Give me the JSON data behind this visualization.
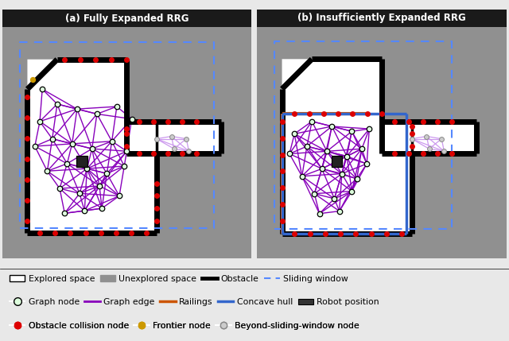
{
  "title_a": "(a) Fully Expanded RRG",
  "title_b": "(b) Insufficiently Expanded RRG",
  "bg_color": "#909090",
  "title_bg": "#1a1a1a",
  "title_fg": "#ffffff",
  "explored_color": "#ffffff",
  "wall_color": "#000000",
  "wall_lw": 5,
  "sliding_color": "#5588ff",
  "sliding_ls": "--",
  "edge_color_main": "#8800bb",
  "edge_color_beyond": "#cc99ee",
  "node_fc": "#ddffdd",
  "node_ec": "#000000",
  "robot_fc": "#222222",
  "obs_col_color": "#dd0000",
  "frontier_color": "#cc9900",
  "beyond_fc": "#cccccc",
  "beyond_ec": "#888888",
  "railing_color": "#cc5500",
  "concave_color": "#3366cc",
  "panel_a_nodes_x": [
    1.5,
    2.2,
    3.0,
    3.8,
    4.6,
    5.2,
    1.3,
    2.0,
    2.8,
    3.6,
    4.4,
    5.0,
    1.8,
    2.6,
    3.4,
    4.2,
    4.9,
    2.3,
    3.1,
    3.9,
    2.5,
    3.3,
    4.0,
    1.6,
    4.7
  ],
  "panel_a_nodes_y": [
    5.5,
    6.2,
    6.0,
    5.8,
    6.1,
    5.6,
    4.5,
    4.8,
    4.6,
    4.4,
    4.7,
    4.3,
    3.5,
    3.8,
    3.6,
    3.4,
    3.7,
    2.8,
    2.6,
    2.9,
    1.8,
    1.9,
    2.0,
    6.8,
    2.5
  ],
  "robot_a": [
    3.2,
    3.9
  ],
  "beyond_a_x": [
    6.2,
    6.8,
    7.4,
    6.9,
    7.5
  ],
  "beyond_a_y": [
    4.8,
    4.9,
    4.8,
    4.4,
    4.3
  ],
  "panel_b_nodes_x": [
    1.5,
    2.2,
    3.0,
    3.8,
    4.5,
    1.3,
    2.0,
    2.8,
    3.6,
    4.2,
    1.8,
    2.6,
    3.4,
    4.0,
    2.3,
    3.1,
    3.8,
    2.5,
    3.3,
    4.4
  ],
  "panel_b_nodes_y": [
    5.0,
    5.5,
    5.3,
    5.1,
    5.2,
    4.2,
    4.5,
    4.3,
    4.1,
    4.4,
    3.3,
    3.6,
    3.4,
    3.2,
    2.6,
    2.4,
    2.7,
    1.8,
    1.9,
    3.8
  ],
  "robot_b": [
    3.2,
    3.9
  ],
  "beyond_b_x": [
    6.2,
    6.8,
    7.4,
    6.9,
    7.5
  ],
  "beyond_b_y": [
    4.8,
    4.9,
    4.8,
    4.4,
    4.3
  ],
  "legend_row1": [
    "Explored space",
    "Unexplored space",
    "Obstacle",
    "Sliding window"
  ],
  "legend_row2": [
    "Graph node",
    "Graph edge",
    "Railings",
    "Concave hull",
    "Robot position"
  ],
  "legend_row3": [
    "Obstacle collision node",
    "Frontier node",
    "Beyond-sliding-window node"
  ]
}
